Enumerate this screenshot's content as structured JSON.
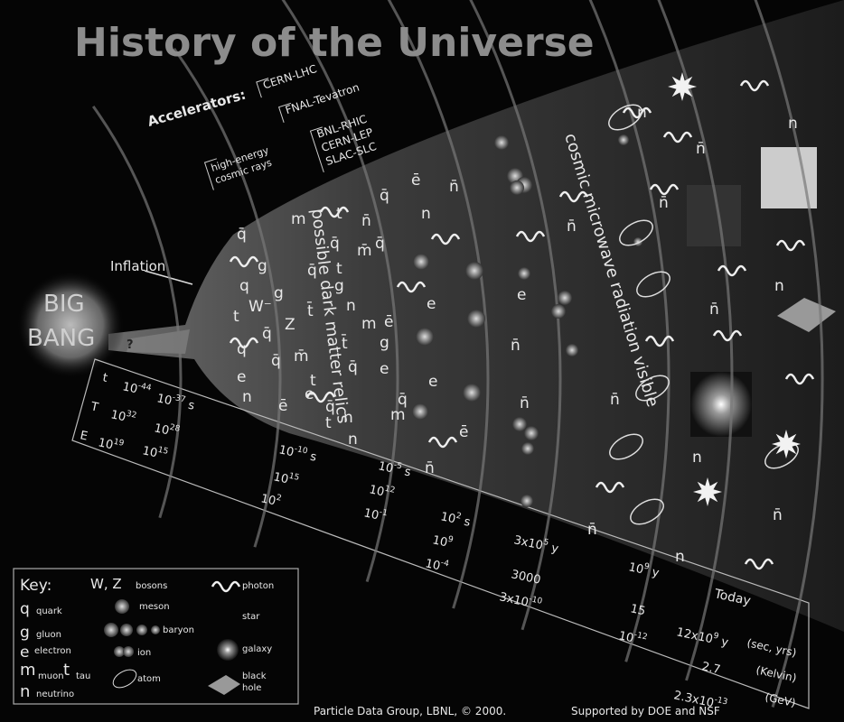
{
  "title": "History of the Universe",
  "accelerators": {
    "heading": "Accelerators:",
    "items": [
      "CERN-LHC",
      "FNAL-Tevatron",
      "BNL-RHIC",
      "CERN-LEP",
      "SLAC-SLC"
    ]
  },
  "cosmic_rays": [
    "high-energy",
    "cosmic rays"
  ],
  "inflation": "Inflation",
  "big_bang": [
    "BIG",
    "BANG"
  ],
  "question": "?",
  "eras": [
    "possible dark matter relics",
    "cosmic microwave radiation visible"
  ],
  "particles": [
    "q̄",
    "m",
    "t",
    "n̄",
    "q̄",
    "q̄",
    "m̄",
    "q̄",
    "g",
    "q",
    "g",
    "W⁻",
    "t",
    "q̄",
    "Z",
    "t̄",
    "n",
    "g",
    "t",
    "q̄",
    "m",
    "ē",
    "q",
    "q̄",
    "m̄",
    "t̄",
    "g",
    "q̄",
    "e",
    "n",
    "e",
    "ē",
    "e",
    "t",
    "q̄",
    "t",
    "n",
    "m",
    "q̄",
    "n",
    "ē",
    "n̄",
    "n",
    "e",
    "e",
    "ē",
    "n̄",
    "n̄",
    "e",
    "n̄",
    "n̄",
    "n",
    "n̄",
    "n̄",
    "n",
    "n̄",
    "n",
    "n̄",
    "n",
    "n̄",
    "n",
    "n̄"
  ],
  "scale": [
    {
      "text": "t"
    },
    {
      "text": "10",
      "sup": "-44"
    },
    {
      "text": "10",
      "sup": "-37",
      "after": " s"
    },
    {
      "text": "T"
    },
    {
      "text": "10",
      "sup": "32"
    },
    {
      "text": "10",
      "sup": "28"
    },
    {
      "text": "E"
    },
    {
      "text": "10",
      "sup": "19"
    },
    {
      "text": "10",
      "sup": "15"
    },
    {
      "text": "10",
      "sup": "-10",
      "after": " s"
    },
    {
      "text": "10",
      "sup": "15"
    },
    {
      "text": "10",
      "sup": "2"
    },
    {
      "text": "10",
      "sup": "-5",
      "after": " s"
    },
    {
      "text": "10",
      "sup": "12"
    },
    {
      "text": "10",
      "sup": "-1"
    },
    {
      "text": "10",
      "sup": "2",
      "after": " s"
    },
    {
      "text": "10",
      "sup": "9"
    },
    {
      "text": "10",
      "sup": "-4"
    },
    {
      "text": "3x10",
      "sup": "5",
      "after": " y"
    },
    {
      "text": "3000"
    },
    {
      "text": "3x10",
      "sup": "-10"
    },
    {
      "text": "10",
      "sup": "9",
      "after": " y"
    },
    {
      "text": "15"
    },
    {
      "text": "10",
      "sup": "-12"
    },
    {
      "text": "12x10",
      "sup": "9",
      "after": " y"
    },
    {
      "text": "2.7"
    },
    {
      "text": "2.3x10",
      "sup": "-13"
    }
  ],
  "today": "Today",
  "units": [
    "(sec, yrs)",
    "(Kelvin)",
    "(GeV)"
  ],
  "key": {
    "heading": "Key:",
    "symbols": [
      "q",
      "g",
      "e",
      "m",
      "t",
      "n",
      "W, Z"
    ],
    "names": [
      "quark",
      "gluon",
      "electron",
      "muon",
      "tau",
      "neutrino",
      "bosons",
      "meson",
      "baryon",
      "ion",
      "atom",
      "photon",
      "star",
      "galaxy"
    ],
    "black_hole": [
      "black",
      "hole"
    ]
  },
  "credit": [
    "Particle Data Group, LBNL, © 2000.",
    "Supported by DOE and NSF"
  ]
}
